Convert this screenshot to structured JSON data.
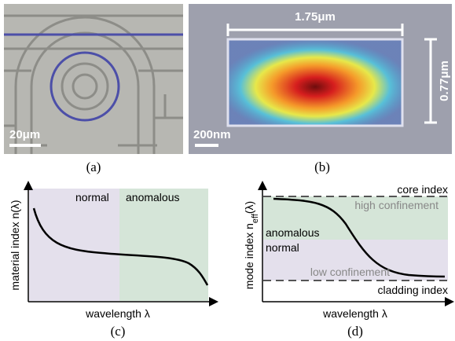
{
  "panel_a": {
    "scale_bar": "20μm",
    "caption": "(a)"
  },
  "panel_b": {
    "width_label": "1.75μm",
    "height_label": "0.77μm",
    "scale_bar": "200nm",
    "caption": "(b)"
  },
  "panel_c": {
    "region_left": "normal",
    "region_right": "anomalous",
    "y_label": "material index n(λ)",
    "x_label": "wavelength λ",
    "caption": "(c)"
  },
  "panel_d": {
    "top_line": "core index",
    "top_band": "high confinement",
    "upper_region": "anomalous",
    "lower_region": "normal",
    "bottom_band": "low confinement",
    "bottom_line": "cladding index",
    "y_label": {
      "main": "mode index n",
      "sub": "eff",
      "tail": "(λ)"
    },
    "x_label": "wavelength λ",
    "caption": "(d)"
  }
}
